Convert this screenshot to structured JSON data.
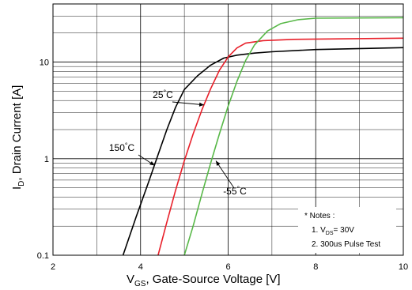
{
  "chart_data": {
    "type": "line",
    "xlabel": {
      "main": "V",
      "sub": "GS",
      "rest": ", Gate-Source Voltage [V]"
    },
    "ylabel": {
      "main": "I",
      "sub": "D",
      "rest": ", Drain Current [A]"
    },
    "xlim": [
      2,
      10
    ],
    "ylim": [
      0.1,
      40
    ],
    "yscale": "log",
    "grid": true,
    "x_ticks": [
      "2",
      "4",
      "6",
      "8",
      "10"
    ],
    "y_ticks": [
      "0.1",
      "1",
      "10"
    ],
    "series": [
      {
        "name": "150°C",
        "color": "#000000",
        "points": [
          [
            3.6,
            0.1
          ],
          [
            3.9,
            0.25
          ],
          [
            4.2,
            0.6
          ],
          [
            4.4,
            1.1
          ],
          [
            4.6,
            2.0
          ],
          [
            4.8,
            3.4
          ],
          [
            5.0,
            5.2
          ],
          [
            5.3,
            7.2
          ],
          [
            5.6,
            9.3
          ],
          [
            5.9,
            11.0
          ],
          [
            6.2,
            11.8
          ],
          [
            6.6,
            12.4
          ],
          [
            7.0,
            12.8
          ],
          [
            8.0,
            13.5
          ],
          [
            10.0,
            14.1
          ]
        ]
      },
      {
        "name": "25°C",
        "color": "#e8202a",
        "points": [
          [
            4.4,
            0.1
          ],
          [
            4.6,
            0.22
          ],
          [
            4.8,
            0.47
          ],
          [
            5.0,
            0.95
          ],
          [
            5.2,
            1.8
          ],
          [
            5.4,
            3.2
          ],
          [
            5.6,
            5.3
          ],
          [
            5.8,
            8.2
          ],
          [
            6.0,
            11.3
          ],
          [
            6.2,
            14.0
          ],
          [
            6.4,
            15.7
          ],
          [
            6.8,
            16.7
          ],
          [
            7.5,
            17.2
          ],
          [
            10.0,
            17.7
          ]
        ]
      },
      {
        "name": "-55°C",
        "color": "#58b848",
        "points": [
          [
            5.0,
            0.1
          ],
          [
            5.2,
            0.2
          ],
          [
            5.4,
            0.43
          ],
          [
            5.6,
            0.9
          ],
          [
            5.8,
            1.8
          ],
          [
            6.0,
            3.5
          ],
          [
            6.2,
            6.3
          ],
          [
            6.4,
            10.4
          ],
          [
            6.6,
            15.0
          ],
          [
            6.9,
            21.0
          ],
          [
            7.2,
            25.0
          ],
          [
            7.6,
            27.5
          ],
          [
            8.0,
            28.5
          ],
          [
            10.0,
            28.8
          ]
        ]
      }
    ],
    "annotations": [
      {
        "text": "150",
        "deg": "°C",
        "target": [
          4.32,
          0.85
        ],
        "anchor": "end"
      },
      {
        "text": "25",
        "deg": "°C",
        "target": [
          5.45,
          3.6
        ],
        "anchor": "middle"
      },
      {
        "text": "-55",
        "deg": "°C",
        "target": [
          5.72,
          0.95
        ],
        "anchor": "start"
      }
    ],
    "notes": {
      "title": "* Notes :",
      "line1_prefix": "1. V",
      "line1_sub": "DS",
      "line1_suffix": "= 30V",
      "line2": "2. 300us Pulse Test"
    }
  }
}
